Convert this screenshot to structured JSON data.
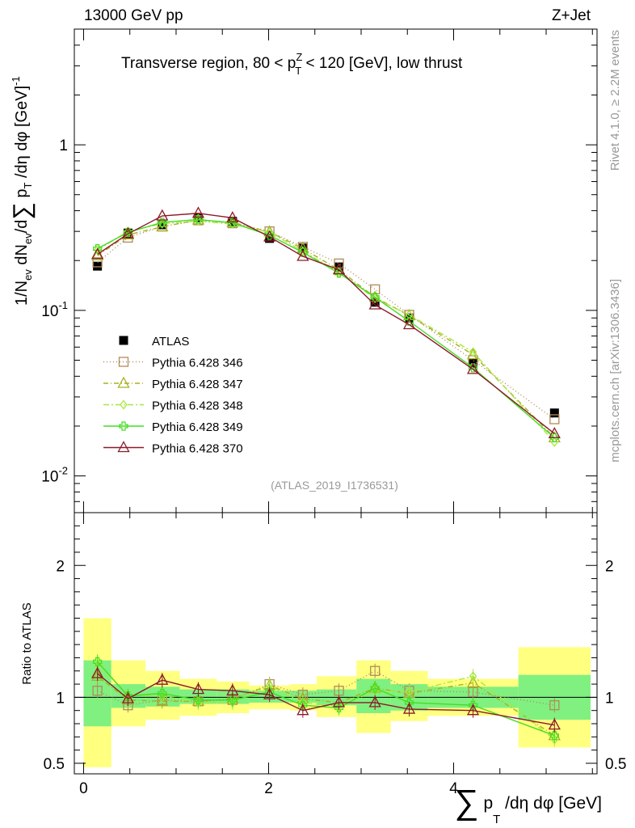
{
  "header": {
    "left": "13000 GeV pp",
    "right": "Z+Jet"
  },
  "side_labels": {
    "rivet": "Rivet 4.1.0, ≥ 2.2M events",
    "mcplots": "mcplots.cern.ch [arXiv:1306.3436]"
  },
  "chart_data": [
    {
      "type": "line",
      "title": "Transverse region, 80 < p_T^Z < 120 [GeV], low thrust",
      "title_parts": {
        "a": "Transverse region, 80 < p",
        "sup": "Z",
        "sub": "T",
        "b": " < 120 [GeV], low thrust"
      },
      "ylabel": "1/N_ev dN_ev/d∑ p_T /dη dφ [GeV]^-1",
      "ylabel_parts": {
        "a": "1/N",
        "sub1": "ev",
        "b": " dN",
        "sub2": "ev",
        "c": "/d",
        "sum": "∑",
        "d": " p",
        "sub3": "T",
        "e": " /dη dφ  [GeV]",
        "sup": "-1"
      },
      "yscale": "log",
      "ylim": [
        0.006,
        5
      ],
      "xlim": [
        -0.1,
        5.55
      ],
      "yticks": [
        {
          "value": 1,
          "label": "1"
        },
        {
          "value": 0.1,
          "base": "10",
          "exp": "-1"
        },
        {
          "value": 0.01,
          "base": "10",
          "exp": "-2"
        }
      ],
      "watermark": "(ATLAS_2019_I1736531)",
      "legend_position": "middle-left",
      "x": [
        0.15,
        0.48,
        0.85,
        1.24,
        1.61,
        2.01,
        2.37,
        2.76,
        3.15,
        3.52,
        4.21,
        5.09
      ],
      "series": [
        {
          "name": "ATLAS",
          "color": "#000000",
          "marker": "square-filled",
          "dash": "none",
          "values": [
            0.185,
            0.293,
            0.329,
            0.362,
            0.345,
            0.272,
            0.238,
            0.183,
            0.112,
            0.09,
            0.048,
            0.024
          ]
        },
        {
          "name": "Pythia 6.428 346",
          "color": "#b08b5a",
          "marker": "square-open",
          "dash": "1,3",
          "values": [
            0.195,
            0.275,
            0.321,
            0.35,
            0.336,
            0.3,
            0.242,
            0.192,
            0.134,
            0.094,
            0.05,
            0.022
          ]
        },
        {
          "name": "Pythia 6.428 347",
          "color": "#a8b020",
          "marker": "triangle-open",
          "dash": "6,3,1,3",
          "values": [
            0.214,
            0.286,
            0.32,
            0.352,
            0.34,
            0.298,
            0.236,
            0.176,
            0.12,
            0.093,
            0.054,
            0.017
          ]
        },
        {
          "name": "Pythia 6.428 348",
          "color": "#a8e840",
          "marker": "diamond-open",
          "dash": "7,3,2,3",
          "values": [
            0.232,
            0.3,
            0.334,
            0.346,
            0.332,
            0.296,
            0.228,
            0.17,
            0.118,
            0.094,
            0.056,
            0.016
          ]
        },
        {
          "name": "Pythia 6.428 349",
          "color": "#44dd22",
          "marker": "cross-open",
          "dash": "none",
          "values": [
            0.236,
            0.296,
            0.34,
            0.354,
            0.338,
            0.284,
            0.224,
            0.168,
            0.12,
            0.086,
            0.045,
            0.017
          ]
        },
        {
          "name": "Pythia 6.428 370",
          "color": "#8b1a2a",
          "marker": "triangle-open",
          "dash": "none",
          "values": [
            0.218,
            0.29,
            0.372,
            0.386,
            0.362,
            0.278,
            0.212,
            0.176,
            0.108,
            0.082,
            0.044,
            0.018
          ]
        }
      ]
    },
    {
      "type": "line",
      "ylabel": "Ratio to ATLAS",
      "xlabel": "∑ p_T /dη dφ [GeV]",
      "xlabel_parts": {
        "sum": "∑",
        "a": " p",
        "sub": "T",
        "b": " /dη dφ [GeV]"
      },
      "ylim": [
        0.42,
        2.4
      ],
      "xlim": [
        -0.1,
        5.55
      ],
      "yticks": [
        0.5,
        1,
        2
      ],
      "ytick_labels": [
        "0.5",
        "1",
        "2"
      ],
      "xticks": [
        0,
        2,
        4
      ],
      "xtick_labels": [
        "0",
        "2",
        "4"
      ],
      "bins": [
        {
          "lo": 0.0,
          "hi": 0.3,
          "green": [
            0.78,
            1.28
          ],
          "yellow": [
            0.47,
            1.6
          ]
        },
        {
          "lo": 0.3,
          "hi": 0.67,
          "green": [
            0.92,
            1.1
          ],
          "yellow": [
            0.78,
            1.28
          ]
        },
        {
          "lo": 0.67,
          "hi": 1.04,
          "green": [
            0.93,
            1.08
          ],
          "yellow": [
            0.83,
            1.2
          ]
        },
        {
          "lo": 1.04,
          "hi": 1.44,
          "green": [
            0.95,
            1.06
          ],
          "yellow": [
            0.86,
            1.14
          ]
        },
        {
          "lo": 1.44,
          "hi": 1.79,
          "green": [
            0.95,
            1.06
          ],
          "yellow": [
            0.88,
            1.12
          ]
        },
        {
          "lo": 1.79,
          "hi": 2.23,
          "green": [
            0.96,
            1.05
          ],
          "yellow": [
            0.91,
            1.09
          ]
        },
        {
          "lo": 2.23,
          "hi": 2.52,
          "green": [
            0.96,
            1.05
          ],
          "yellow": [
            0.9,
            1.1
          ]
        },
        {
          "lo": 2.52,
          "hi": 2.95,
          "green": [
            0.94,
            1.06
          ],
          "yellow": [
            0.85,
            1.16
          ]
        },
        {
          "lo": 2.95,
          "hi": 3.32,
          "green": [
            0.88,
            1.14
          ],
          "yellow": [
            0.73,
            1.28
          ]
        },
        {
          "lo": 3.32,
          "hi": 3.72,
          "green": [
            0.9,
            1.1
          ],
          "yellow": [
            0.82,
            1.2
          ]
        },
        {
          "lo": 3.72,
          "hi": 4.7,
          "green": [
            0.92,
            1.08
          ],
          "yellow": [
            0.86,
            1.14
          ]
        },
        {
          "lo": 4.7,
          "hi": 5.48,
          "green": [
            0.83,
            1.17
          ],
          "yellow": [
            0.62,
            1.38
          ]
        }
      ],
      "x": [
        0.15,
        0.48,
        0.85,
        1.24,
        1.61,
        2.01,
        2.37,
        2.76,
        3.15,
        3.52,
        4.21,
        5.09
      ],
      "series": [
        {
          "name": "Pythia 6.428 346",
          "color": "#b08b5a",
          "marker": "square-open",
          "dash": "1,3",
          "values": [
            1.05,
            0.94,
            0.98,
            0.97,
            0.98,
            1.1,
            1.02,
            1.05,
            1.2,
            1.05,
            1.04,
            0.94
          ]
        },
        {
          "name": "Pythia 6.428 347",
          "color": "#a8b020",
          "marker": "triangle-open",
          "dash": "6,3,1,3",
          "values": [
            1.16,
            0.98,
            0.97,
            0.97,
            0.99,
            1.09,
            0.99,
            0.96,
            1.07,
            1.03,
            1.11,
            0.71
          ]
        },
        {
          "name": "Pythia 6.428 348",
          "color": "#a8e840",
          "marker": "diamond-open",
          "dash": "7,3,2,3",
          "values": [
            1.25,
            1.02,
            1.01,
            0.96,
            0.96,
            1.09,
            0.96,
            0.93,
            1.05,
            1.04,
            1.16,
            0.68
          ]
        },
        {
          "name": "Pythia 6.428 349",
          "color": "#44dd22",
          "marker": "cross-open",
          "dash": "none",
          "values": [
            1.27,
            1.01,
            1.03,
            0.98,
            0.98,
            1.04,
            0.94,
            0.92,
            1.07,
            0.96,
            0.94,
            0.71
          ]
        },
        {
          "name": "Pythia 6.428 370",
          "color": "#8b1a2a",
          "marker": "triangle-open",
          "dash": "none",
          "values": [
            1.18,
            0.99,
            1.13,
            1.06,
            1.05,
            1.02,
            0.9,
            0.96,
            0.96,
            0.91,
            0.9,
            0.79
          ]
        }
      ]
    }
  ]
}
